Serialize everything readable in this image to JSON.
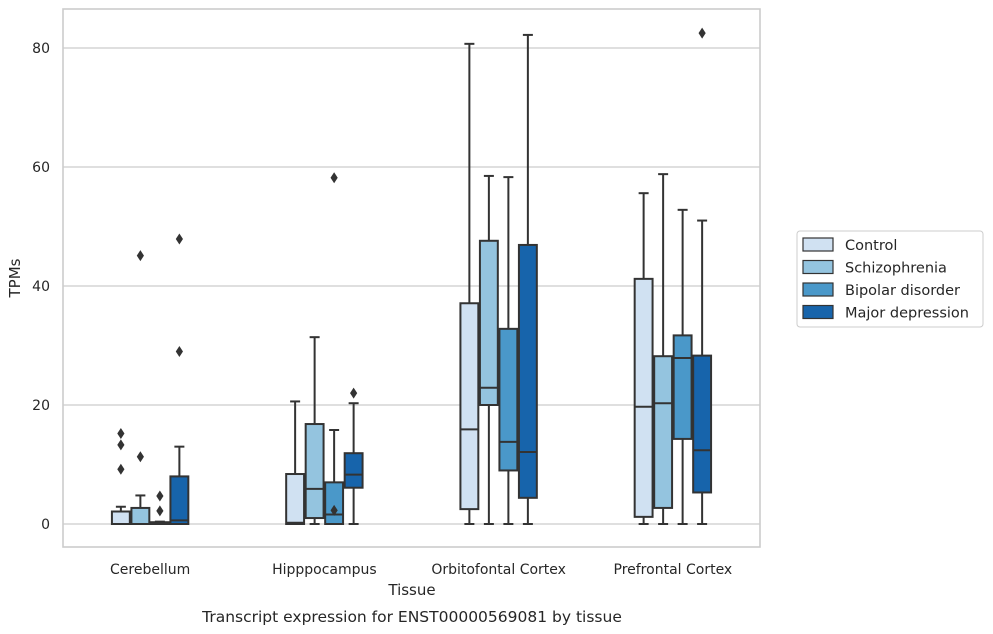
{
  "caption": "Transcript expression for ENST00000569081 by tissue",
  "chart_data": {
    "type": "boxplot",
    "xlabel": "Tissue",
    "ylabel": "TPMs",
    "ylim": [
      -4,
      86.5
    ],
    "yticks": [
      0,
      20,
      40,
      60,
      80
    ],
    "grid": "horizontal",
    "legend_position": "right",
    "categories": [
      "Cerebellum",
      "Hipppocampus",
      "Orbitofontal Cortex",
      "Prefrontal Cortex"
    ],
    "series": [
      {
        "name": "Control",
        "color": "#d0e1f2",
        "boxes": [
          {
            "whislo": 0,
            "q1": 0,
            "med": 0,
            "q3": 2.1,
            "whishi": 2.9,
            "fliers": [
              9.2,
              13.3,
              15.2
            ]
          },
          {
            "whislo": 0,
            "q1": 0,
            "med": 0.2,
            "q3": 8.4,
            "whishi": 20.6,
            "fliers": []
          },
          {
            "whislo": 0,
            "q1": 2.5,
            "med": 15.9,
            "q3": 37.1,
            "whishi": 80.7,
            "fliers": []
          },
          {
            "whislo": 0,
            "q1": 1.2,
            "med": 19.7,
            "q3": 41.2,
            "whishi": 55.6,
            "fliers": []
          }
        ]
      },
      {
        "name": "Schizophrenia",
        "color": "#94c4df",
        "boxes": [
          {
            "whislo": 0,
            "q1": 0,
            "med": 0,
            "q3": 2.7,
            "whishi": 4.8,
            "fliers": [
              11.3,
              45.1
            ]
          },
          {
            "whislo": 0,
            "q1": 1.0,
            "med": 5.9,
            "q3": 16.8,
            "whishi": 31.4,
            "fliers": []
          },
          {
            "whislo": 0,
            "q1": 20.0,
            "med": 22.9,
            "q3": 47.6,
            "whishi": 58.5,
            "fliers": []
          },
          {
            "whislo": 0,
            "q1": 2.7,
            "med": 20.3,
            "q3": 28.2,
            "whishi": 58.8,
            "fliers": []
          }
        ]
      },
      {
        "name": "Bipolar disorder",
        "color": "#4a98c9",
        "boxes": [
          {
            "whislo": 0,
            "q1": 0,
            "med": 0,
            "q3": 0.3,
            "whishi": 0.4,
            "fliers": [
              2.2,
              4.7
            ]
          },
          {
            "whislo": 0,
            "q1": 0,
            "med": 1.6,
            "q3": 7.0,
            "whishi": 15.8,
            "fliers": [
              2.3,
              58.2
            ]
          },
          {
            "whislo": 0,
            "q1": 9.0,
            "med": 13.8,
            "q3": 32.8,
            "whishi": 58.3,
            "fliers": []
          },
          {
            "whislo": 0,
            "q1": 14.3,
            "med": 27.9,
            "q3": 31.7,
            "whishi": 52.8,
            "fliers": []
          }
        ]
      },
      {
        "name": "Major depression",
        "color": "#1764ab",
        "boxes": [
          {
            "whislo": 0,
            "q1": 0,
            "med": 0.6,
            "q3": 8.0,
            "whishi": 13.0,
            "fliers": [
              29.0,
              47.9
            ]
          },
          {
            "whislo": 0,
            "q1": 6.1,
            "med": 8.3,
            "q3": 11.9,
            "whishi": 20.3,
            "fliers": [
              22.0
            ]
          },
          {
            "whislo": 0,
            "q1": 4.4,
            "med": 12.1,
            "q3": 46.9,
            "whishi": 82.2,
            "fliers": []
          },
          {
            "whislo": 0,
            "q1": 5.3,
            "med": 12.4,
            "q3": 28.3,
            "whishi": 51.0,
            "fliers": [
              82.5
            ]
          }
        ]
      }
    ]
  }
}
